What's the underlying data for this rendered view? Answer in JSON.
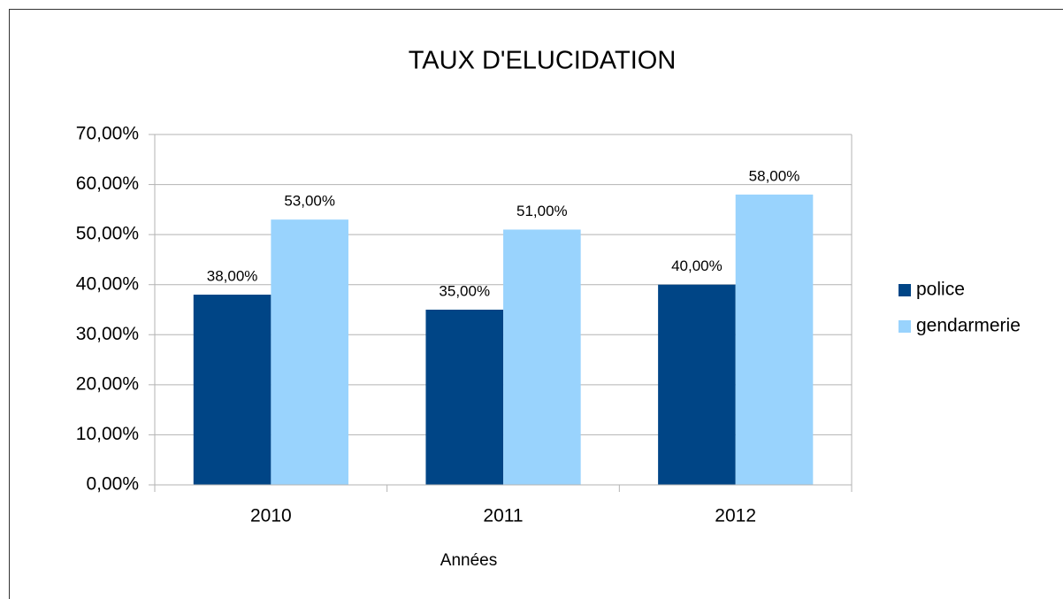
{
  "chart_data": {
    "type": "bar",
    "title": "TAUX D'ELUCIDATION",
    "xlabel": "Années",
    "categories": [
      "2010",
      "2011",
      "2012"
    ],
    "series": [
      {
        "name": "police",
        "color": "#004586",
        "values": [
          38,
          35,
          40
        ],
        "value_labels": [
          "38,00%",
          "35,00%",
          "40,00%"
        ]
      },
      {
        "name": "gendarmerie",
        "color": "#99d3fd",
        "values": [
          53,
          51,
          58
        ],
        "value_labels": [
          "53,00%",
          "51,00%",
          "58,00%"
        ]
      }
    ],
    "ylim": [
      0,
      70
    ],
    "yticks": [
      {
        "value": 0,
        "label": "0,00%"
      },
      {
        "value": 10,
        "label": "10,00%"
      },
      {
        "value": 20,
        "label": "20,00%"
      },
      {
        "value": 30,
        "label": "30,00%"
      },
      {
        "value": 40,
        "label": "40,00%"
      },
      {
        "value": 50,
        "label": "50,00%"
      },
      {
        "value": 60,
        "label": "60,00%"
      },
      {
        "value": 70,
        "label": "70,00%"
      }
    ],
    "grid": true,
    "legend": "right"
  }
}
